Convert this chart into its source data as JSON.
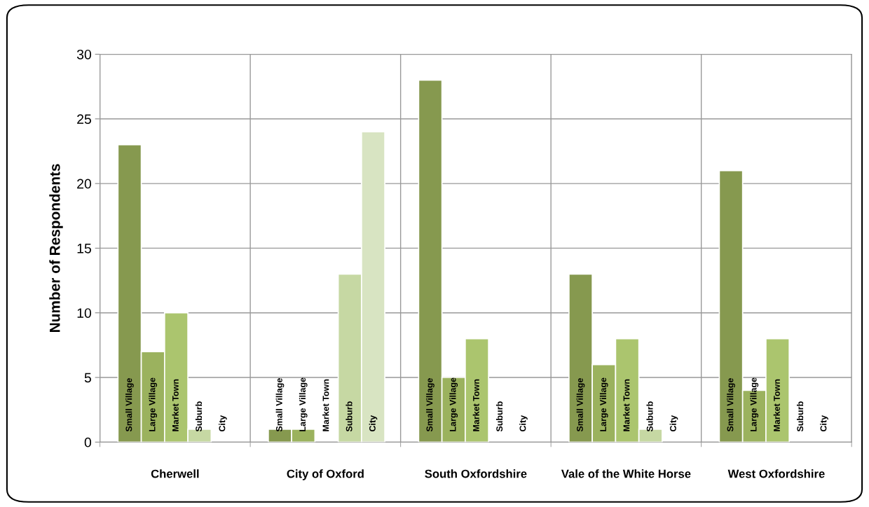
{
  "chart_data": {
    "type": "bar",
    "ylabel": "Number of Respondents",
    "categories": [
      "Cherwell",
      "City of Oxford",
      "South Oxfordshire",
      "Vale of the White Horse",
      "West Oxfordshire"
    ],
    "series": [
      {
        "name": "Small Village",
        "color": "#86994f",
        "values": [
          23,
          1,
          28,
          13,
          21
        ]
      },
      {
        "name": "Large Village",
        "color": "#9bb25e",
        "values": [
          7,
          1,
          5,
          6,
          4
        ]
      },
      {
        "name": "Market Town",
        "color": "#abc56e",
        "values": [
          10,
          0,
          8,
          8,
          8
        ]
      },
      {
        "name": "Suburb",
        "color": "#c6d8a3",
        "values": [
          1,
          13,
          0,
          1,
          0
        ]
      },
      {
        "name": "City",
        "color": "#d8e4c2",
        "values": [
          0,
          24,
          0,
          0,
          0
        ]
      }
    ],
    "ylim": [
      0,
      30
    ],
    "yticks": [
      0,
      5,
      10,
      15,
      20,
      25,
      30
    ],
    "grid": true,
    "legend": false
  }
}
